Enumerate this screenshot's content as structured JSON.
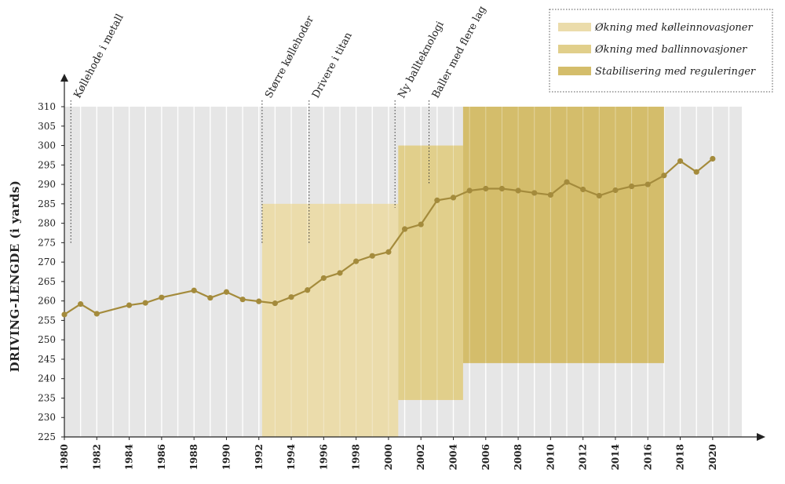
{
  "chart_data": {
    "type": "line",
    "title": "",
    "xlabel": "",
    "ylabel": "DRIVING-LENGDE (i yards)",
    "xlim": [
      1980,
      2021.8
    ],
    "ylim": [
      225,
      310
    ],
    "y_ticks": [
      225,
      230,
      235,
      240,
      245,
      250,
      255,
      260,
      265,
      270,
      275,
      280,
      285,
      290,
      295,
      300,
      305,
      310
    ],
    "x_ticks": [
      1980,
      1982,
      1984,
      1986,
      1988,
      1990,
      1992,
      1994,
      1996,
      1998,
      2000,
      2002,
      2004,
      2006,
      2008,
      2010,
      2012,
      2014,
      2016,
      2018,
      2020
    ],
    "grid": "vertical",
    "line_color": "#a48b3c",
    "background_color": "#e6e6e6",
    "series": [
      {
        "x": [
          1980,
          1981,
          1982,
          1984,
          1985,
          1986,
          1988,
          1989,
          1990,
          1991,
          1992,
          1993,
          1994,
          1995,
          1996,
          1997,
          1998,
          1999,
          2000,
          2001,
          2002,
          2003,
          2004,
          2005,
          2006,
          2007,
          2008,
          2009,
          2010,
          2011,
          2012,
          2013,
          2014,
          2015,
          2016,
          2017,
          2018,
          2019,
          2020
        ],
        "values": [
          256.5,
          259.2,
          256.7,
          258.9,
          259.5,
          260.9,
          262.7,
          260.8,
          262.3,
          260.4,
          259.9,
          259.4,
          261.0,
          262.8,
          265.9,
          267.2,
          270.2,
          271.6,
          272.6,
          278.5,
          279.7,
          285.9,
          286.6,
          288.4,
          288.9,
          288.9,
          288.4,
          287.8,
          287.3,
          290.6,
          288.7,
          287.1,
          288.5,
          289.5,
          290.0,
          292.3,
          296.0,
          293.2,
          296.6
        ]
      }
    ],
    "regions": [
      {
        "name": "Økning med kølleinnovasjoner",
        "x0": 1992.2,
        "x1": 2000.6,
        "y0": 225,
        "y1": 285,
        "color": "#ebdcab"
      },
      {
        "name": "Økning med ballinnovasjoner",
        "x0": 2000.6,
        "x1": 2004.6,
        "y0": 234.5,
        "y1": 300,
        "color": "#e1cf8b"
      },
      {
        "name": "Stabilisering med reguleringer",
        "x0": 2004.6,
        "x1": 2017.0,
        "y0": 244,
        "y1": 310,
        "color": "#d4bd6b"
      }
    ],
    "annotations": [
      {
        "text": "Køllehode i metall",
        "x": 1980.4,
        "y_line_top": 310,
        "y_line_bottom": 274.5,
        "y_text_anchor": 310
      },
      {
        "text": "Større køllehoder",
        "x": 1992.2,
        "y_line_top": 310,
        "y_line_bottom": 274.5,
        "y_text_anchor": 310
      },
      {
        "text": "Drivere i titan",
        "x": 1995.1,
        "y_line_top": 310,
        "y_line_bottom": 274.5,
        "y_text_anchor": 310
      },
      {
        "text": "Ny ballteknologi",
        "x": 2000.4,
        "y_line_top": 310,
        "y_line_bottom": 284,
        "y_text_anchor": 310
      },
      {
        "text": "Baller med flere lag",
        "x": 2002.5,
        "y_line_top": 310,
        "y_line_bottom": 290,
        "y_text_anchor": 310
      }
    ],
    "legend": {
      "placement": "top-right",
      "entries": [
        {
          "label": "Økning med kølleinnovasjoner",
          "color": "#ebdcab"
        },
        {
          "label": "Økning med ballinnovasjoner",
          "color": "#e1cf8b"
        },
        {
          "label": "Stabilisering med reguleringer",
          "color": "#d4bd6b"
        }
      ]
    }
  }
}
